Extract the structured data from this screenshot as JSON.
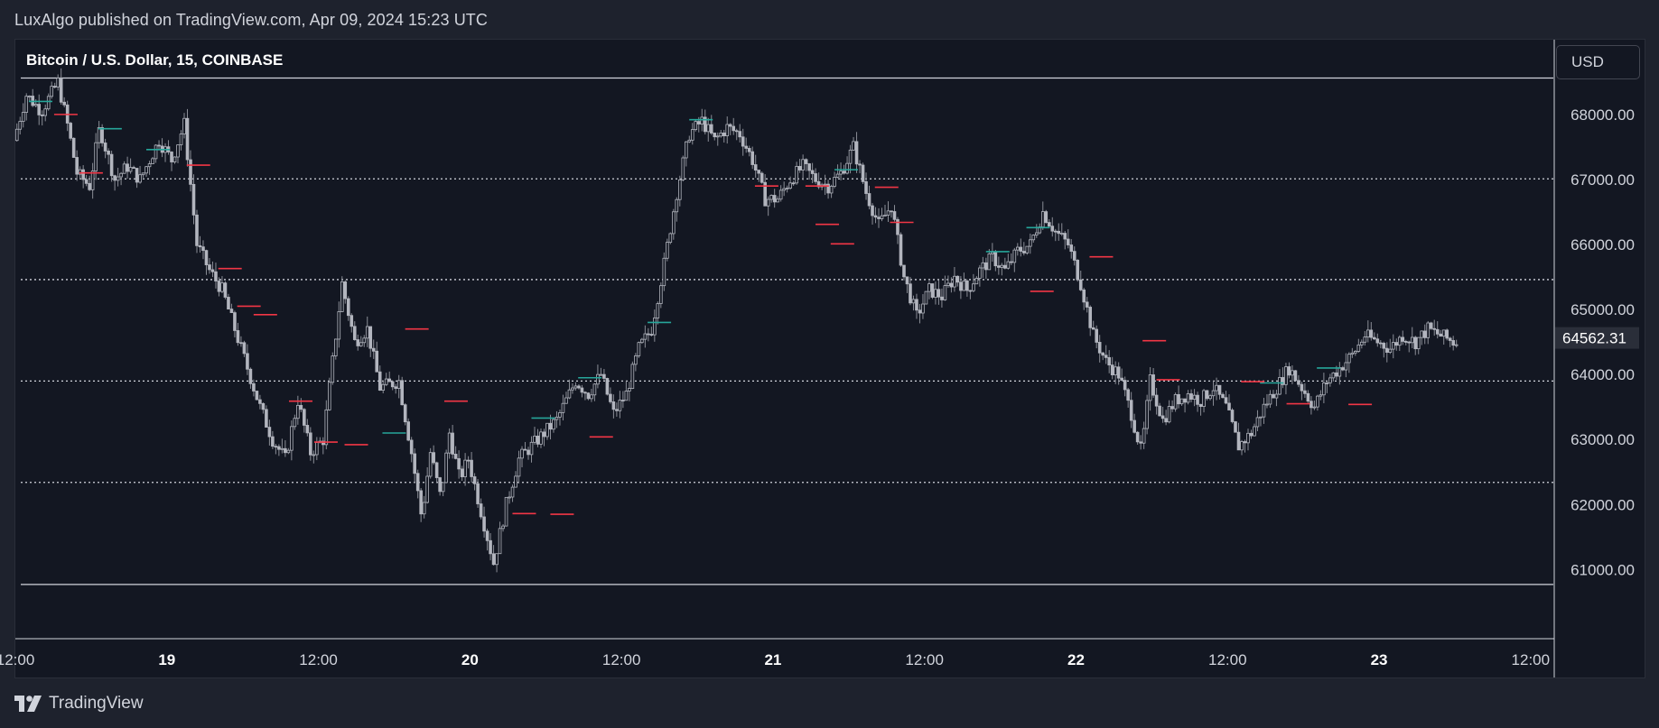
{
  "header": {
    "published_text": "LuxAlgo published on TradingView.com, Apr 09, 2024 15:23 UTC"
  },
  "chart": {
    "symbol_title": "Bitcoin / U.S. Dollar, 15, COINBASE",
    "currency_button": "USD",
    "last_price_label": "64562.31"
  },
  "footer": {
    "brand": "TradingView"
  },
  "colors": {
    "background": "#131722",
    "outer": "#1e222d",
    "candle": "#b2b5be",
    "resistance": "#26a69a",
    "support": "#f23645",
    "level_line": "#d1d4dc"
  },
  "chart_data": {
    "type": "candlestick",
    "title": "Bitcoin / U.S. Dollar, 15, COINBASE",
    "y_axis": {
      "ticks": [
        61000,
        62000,
        63000,
        64000,
        65000,
        66000,
        67000,
        68000
      ],
      "tick_labels": [
        "61000.00",
        "62000.00",
        "63000.00",
        "64000.00",
        "65000.00",
        "66000.00",
        "67000.00",
        "68000.00"
      ],
      "range": [
        59950,
        69150
      ]
    },
    "x_axis": {
      "tick_labels": [
        "12:00",
        "19",
        "12:00",
        "20",
        "12:00",
        "21",
        "12:00",
        "22",
        "12:00",
        "23",
        "12:00"
      ],
      "tick_hours": [
        12,
        24,
        36,
        48,
        60,
        72,
        84,
        96,
        108,
        120,
        132
      ],
      "range_hours": [
        12,
        133.8
      ],
      "bold_ticks": [
        "19",
        "20",
        "21",
        "22",
        "23"
      ]
    },
    "last_price": 64562.31,
    "horizontal_levels": {
      "solid": [
        68560,
        60770
      ],
      "dotted": [
        67010,
        65460,
        63900,
        62340
      ]
    },
    "price_path": [
      {
        "h": 12.0,
        "p": 67600
      },
      {
        "h": 13.0,
        "p": 68300
      },
      {
        "h": 14.2,
        "p": 68050
      },
      {
        "h": 15.5,
        "p": 68500
      },
      {
        "h": 16.3,
        "p": 67800
      },
      {
        "h": 17.0,
        "p": 67100
      },
      {
        "h": 18.0,
        "p": 66900
      },
      {
        "h": 18.8,
        "p": 67800
      },
      {
        "h": 20.0,
        "p": 67000
      },
      {
        "h": 21.0,
        "p": 67200
      },
      {
        "h": 22.0,
        "p": 67000
      },
      {
        "h": 23.5,
        "p": 67600
      },
      {
        "h": 24.5,
        "p": 67300
      },
      {
        "h": 25.5,
        "p": 67850
      },
      {
        "h": 26.5,
        "p": 66000
      },
      {
        "h": 27.5,
        "p": 65600
      },
      {
        "h": 28.5,
        "p": 65300
      },
      {
        "h": 29.5,
        "p": 64700
      },
      {
        "h": 30.5,
        "p": 64100
      },
      {
        "h": 31.5,
        "p": 63500
      },
      {
        "h": 32.5,
        "p": 63000
      },
      {
        "h": 33.5,
        "p": 62700
      },
      {
        "h": 34.5,
        "p": 63600
      },
      {
        "h": 35.5,
        "p": 62800
      },
      {
        "h": 36.5,
        "p": 63000
      },
      {
        "h": 38.0,
        "p": 65400
      },
      {
        "h": 39.0,
        "p": 64500
      },
      {
        "h": 40.0,
        "p": 64700
      },
      {
        "h": 41.0,
        "p": 63800
      },
      {
        "h": 42.5,
        "p": 63900
      },
      {
        "h": 43.5,
        "p": 62800
      },
      {
        "h": 44.3,
        "p": 61800
      },
      {
        "h": 45.0,
        "p": 62800
      },
      {
        "h": 45.8,
        "p": 62100
      },
      {
        "h": 46.5,
        "p": 63100
      },
      {
        "h": 47.3,
        "p": 62400
      },
      {
        "h": 48.0,
        "p": 62700
      },
      {
        "h": 49.0,
        "p": 61900
      },
      {
        "h": 50.0,
        "p": 61100
      },
      {
        "h": 51.0,
        "p": 62000
      },
      {
        "h": 52.0,
        "p": 62700
      },
      {
        "h": 53.5,
        "p": 63000
      },
      {
        "h": 55.0,
        "p": 63300
      },
      {
        "h": 56.5,
        "p": 63900
      },
      {
        "h": 57.5,
        "p": 63700
      },
      {
        "h": 58.5,
        "p": 64000
      },
      {
        "h": 59.5,
        "p": 63400
      },
      {
        "h": 60.5,
        "p": 63700
      },
      {
        "h": 61.5,
        "p": 64400
      },
      {
        "h": 62.5,
        "p": 64700
      },
      {
        "h": 63.5,
        "p": 65700
      },
      {
        "h": 64.5,
        "p": 66800
      },
      {
        "h": 65.5,
        "p": 67700
      },
      {
        "h": 66.5,
        "p": 67900
      },
      {
        "h": 67.5,
        "p": 67600
      },
      {
        "h": 68.5,
        "p": 67800
      },
      {
        "h": 69.5,
        "p": 67700
      },
      {
        "h": 70.5,
        "p": 67300
      },
      {
        "h": 71.5,
        "p": 66700
      },
      {
        "h": 72.5,
        "p": 66700
      },
      {
        "h": 73.5,
        "p": 67000
      },
      {
        "h": 74.5,
        "p": 67200
      },
      {
        "h": 75.5,
        "p": 67000
      },
      {
        "h": 76.5,
        "p": 66900
      },
      {
        "h": 77.5,
        "p": 67100
      },
      {
        "h": 78.5,
        "p": 67500
      },
      {
        "h": 79.5,
        "p": 66800
      },
      {
        "h": 80.5,
        "p": 66300
      },
      {
        "h": 81.5,
        "p": 66600
      },
      {
        "h": 82.5,
        "p": 65500
      },
      {
        "h": 83.5,
        "p": 64900
      },
      {
        "h": 84.5,
        "p": 65300
      },
      {
        "h": 85.5,
        "p": 65200
      },
      {
        "h": 86.5,
        "p": 65500
      },
      {
        "h": 87.5,
        "p": 65300
      },
      {
        "h": 88.5,
        "p": 65600
      },
      {
        "h": 89.5,
        "p": 65800
      },
      {
        "h": 90.5,
        "p": 65600
      },
      {
        "h": 91.5,
        "p": 65900
      },
      {
        "h": 92.5,
        "p": 66000
      },
      {
        "h": 93.5,
        "p": 66500
      },
      {
        "h": 94.5,
        "p": 66200
      },
      {
        "h": 95.5,
        "p": 66000
      },
      {
        "h": 96.5,
        "p": 65400
      },
      {
        "h": 97.5,
        "p": 64600
      },
      {
        "h": 98.5,
        "p": 64200
      },
      {
        "h": 99.5,
        "p": 64000
      },
      {
        "h": 100.5,
        "p": 63400
      },
      {
        "h": 101.3,
        "p": 62800
      },
      {
        "h": 102.0,
        "p": 63900
      },
      {
        "h": 103.0,
        "p": 63300
      },
      {
        "h": 104.0,
        "p": 63600
      },
      {
        "h": 105.0,
        "p": 63700
      },
      {
        "h": 106.0,
        "p": 63600
      },
      {
        "h": 107.0,
        "p": 63800
      },
      {
        "h": 108.0,
        "p": 63500
      },
      {
        "h": 109.0,
        "p": 62900
      },
      {
        "h": 110.0,
        "p": 63100
      },
      {
        "h": 111.0,
        "p": 63500
      },
      {
        "h": 112.0,
        "p": 63800
      },
      {
        "h": 113.0,
        "p": 64100
      },
      {
        "h": 114.0,
        "p": 63800
      },
      {
        "h": 115.0,
        "p": 63500
      },
      {
        "h": 116.0,
        "p": 63900
      },
      {
        "h": 117.0,
        "p": 64100
      },
      {
        "h": 118.0,
        "p": 64300
      },
      {
        "h": 119.0,
        "p": 64600
      },
      {
        "h": 120.0,
        "p": 64500
      },
      {
        "h": 121.0,
        "p": 64400
      },
      {
        "h": 122.0,
        "p": 64600
      },
      {
        "h": 123.0,
        "p": 64500
      },
      {
        "h": 124.0,
        "p": 64700
      },
      {
        "h": 125.0,
        "p": 64600
      },
      {
        "h": 126.0,
        "p": 64500
      }
    ],
    "resistance_marks": [
      {
        "h": 14.0,
        "p": 68200
      },
      {
        "h": 19.5,
        "p": 67780
      },
      {
        "h": 23.3,
        "p": 67460
      },
      {
        "h": 42.0,
        "p": 63100
      },
      {
        "h": 53.8,
        "p": 63330
      },
      {
        "h": 57.5,
        "p": 63950
      },
      {
        "h": 63.0,
        "p": 64800
      },
      {
        "h": 66.3,
        "p": 67920
      },
      {
        "h": 77.8,
        "p": 67150
      },
      {
        "h": 89.8,
        "p": 65890
      },
      {
        "h": 93.0,
        "p": 66260
      },
      {
        "h": 111.5,
        "p": 63870
      },
      {
        "h": 116.0,
        "p": 64100
      }
    ],
    "support_marks": [
      {
        "h": 16.0,
        "p": 68000
      },
      {
        "h": 18.0,
        "p": 67100
      },
      {
        "h": 26.5,
        "p": 67220
      },
      {
        "h": 29.0,
        "p": 65630
      },
      {
        "h": 30.5,
        "p": 65050
      },
      {
        "h": 31.8,
        "p": 64920
      },
      {
        "h": 34.6,
        "p": 63590
      },
      {
        "h": 36.6,
        "p": 62960
      },
      {
        "h": 39.0,
        "p": 62920
      },
      {
        "h": 43.8,
        "p": 64700
      },
      {
        "h": 46.9,
        "p": 63590
      },
      {
        "h": 52.3,
        "p": 61860
      },
      {
        "h": 55.3,
        "p": 61850
      },
      {
        "h": 58.4,
        "p": 63040
      },
      {
        "h": 71.5,
        "p": 66900
      },
      {
        "h": 75.5,
        "p": 66900
      },
      {
        "h": 76.3,
        "p": 66310
      },
      {
        "h": 77.5,
        "p": 66010
      },
      {
        "h": 81.0,
        "p": 66880
      },
      {
        "h": 82.2,
        "p": 66340
      },
      {
        "h": 93.3,
        "p": 65280
      },
      {
        "h": 98.0,
        "p": 65810
      },
      {
        "h": 102.2,
        "p": 64520
      },
      {
        "h": 103.3,
        "p": 63920
      },
      {
        "h": 110.0,
        "p": 63890
      },
      {
        "h": 113.6,
        "p": 63550
      },
      {
        "h": 118.5,
        "p": 63540
      }
    ]
  }
}
